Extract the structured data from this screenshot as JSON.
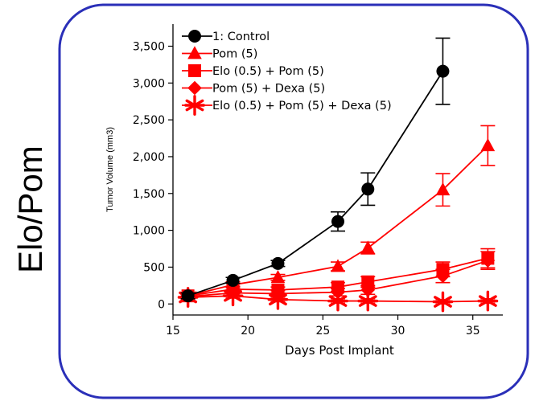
{
  "panel_label": "Elo/Pom",
  "colors": {
    "frame": "#2a2fb8",
    "control": "#000000",
    "treated": "#ff0000"
  },
  "chart_data": {
    "type": "line",
    "xlabel": "Days Post Implant",
    "ylabel": "Tumor Volume (mm3)",
    "xlim": [
      15,
      37
    ],
    "ylim": [
      -150,
      3800
    ],
    "xticks": [
      15,
      20,
      25,
      30,
      35
    ],
    "xtick_labels": [
      "15",
      "20",
      "25",
      "30",
      "35"
    ],
    "yticks": [
      0,
      500,
      1000,
      1500,
      2000,
      2500,
      3000,
      3500
    ],
    "ytick_labels": [
      "0",
      "500",
      "1,000",
      "1,500",
      "2,000",
      "2,500",
      "3,000",
      "3,500"
    ],
    "legend_position": "top-left",
    "series": [
      {
        "name": "1: Control",
        "marker": "circle",
        "color": "#000000",
        "x": [
          16,
          19,
          22,
          26,
          28,
          33
        ],
        "y": [
          110,
          320,
          550,
          1120,
          1560,
          3160
        ],
        "err": [
          40,
          40,
          40,
          130,
          220,
          450
        ]
      },
      {
        "name": "Pom (5)",
        "marker": "triangle",
        "color": "#ff0000",
        "x": [
          16,
          19,
          22,
          26,
          28,
          33,
          36
        ],
        "y": [
          110,
          260,
          360,
          510,
          760,
          1550,
          2150
        ],
        "err": [
          30,
          40,
          40,
          60,
          80,
          220,
          270
        ]
      },
      {
        "name": "Elo (0.5) + Pom (5)",
        "marker": "square",
        "color": "#ff0000",
        "x": [
          16,
          19,
          22,
          26,
          28,
          33,
          36
        ],
        "y": [
          110,
          200,
          190,
          230,
          300,
          470,
          620
        ],
        "err": [
          30,
          40,
          40,
          60,
          70,
          100,
          130
        ]
      },
      {
        "name": "Pom (5) + Dexa (5)",
        "marker": "diamond",
        "color": "#ff0000",
        "x": [
          16,
          19,
          22,
          26,
          28,
          33,
          36
        ],
        "y": [
          100,
          150,
          140,
          160,
          190,
          380,
          590
        ],
        "err": [
          30,
          40,
          40,
          50,
          60,
          90,
          120
        ]
      },
      {
        "name": "Elo (0.5) + Pom (5) + Dexa (5)",
        "marker": "star",
        "color": "#ff0000",
        "x": [
          16,
          19,
          22,
          26,
          28,
          33,
          36
        ],
        "y": [
          90,
          110,
          60,
          40,
          40,
          30,
          40
        ],
        "err": [
          20,
          30,
          30,
          30,
          30,
          30,
          30
        ]
      }
    ]
  }
}
